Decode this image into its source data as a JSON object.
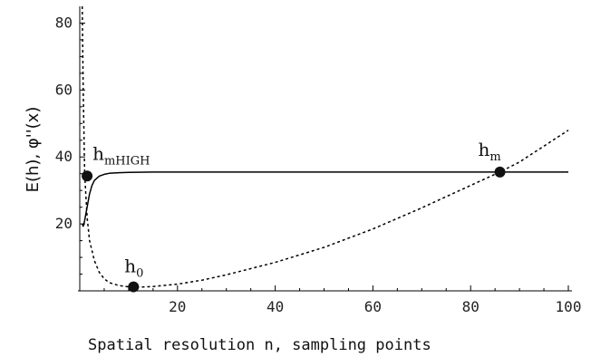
{
  "chart_data": {
    "type": "line",
    "xlabel": "Spatial resolution n, sampling points",
    "ylabel": "E(h), φ''(x)",
    "xlim": [
      0,
      100
    ],
    "ylim": [
      0,
      85
    ],
    "xticks": [
      20,
      40,
      60,
      80,
      100
    ],
    "yticks": [
      20,
      40,
      60,
      80
    ],
    "grid": false,
    "series": [
      {
        "style": "solid",
        "x": [
          0.5,
          0.7,
          1,
          1.5,
          2,
          2.5,
          3,
          4,
          5,
          6,
          8,
          10,
          15,
          20,
          30,
          40,
          50,
          60,
          70,
          80,
          90,
          100
        ],
        "y": [
          20,
          19.3,
          21,
          25,
          29,
          31.5,
          33,
          34.3,
          34.8,
          35.1,
          35.3,
          35.4,
          35.5,
          35.5,
          35.5,
          35.5,
          35.5,
          35.5,
          35.5,
          35.5,
          35.5,
          35.5
        ]
      },
      {
        "style": "dashed",
        "x": [
          0.5,
          0.7,
          1,
          1.5,
          2,
          3,
          4,
          5,
          6,
          8,
          10,
          12,
          15,
          20,
          25,
          30,
          40,
          50,
          60,
          70,
          80,
          86,
          90,
          100
        ],
        "y": [
          85,
          60,
          35,
          22,
          15,
          9,
          5.5,
          3.6,
          2.5,
          1.6,
          1.2,
          1.1,
          1.3,
          2.0,
          3.2,
          4.8,
          8.5,
          13,
          18.5,
          24.8,
          31.5,
          35.5,
          38.5,
          48
        ]
      }
    ],
    "points": [
      {
        "label": "h",
        "sub": "mHIGH",
        "x": 1.5,
        "y": 34.3
      },
      {
        "label": "h",
        "sub": "0",
        "x": 11,
        "y": 1.2
      },
      {
        "label": "h",
        "sub": "m",
        "x": 86,
        "y": 35.5
      }
    ]
  }
}
